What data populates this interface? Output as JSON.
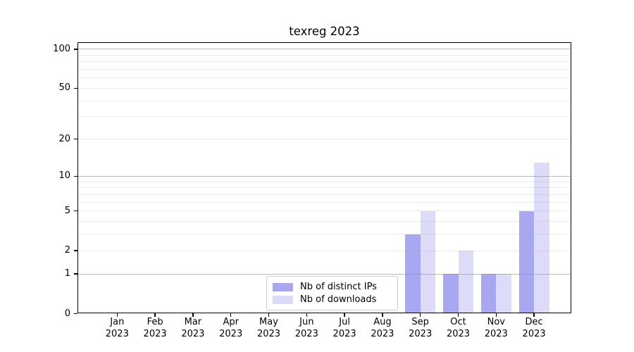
{
  "chart_data": {
    "type": "bar",
    "title": "texreg 2023",
    "categories": [
      "Jan",
      "Feb",
      "Mar",
      "Apr",
      "May",
      "Jun",
      "Jul",
      "Aug",
      "Sep",
      "Oct",
      "Nov",
      "Dec"
    ],
    "year": "2023",
    "series": [
      {
        "name": "Nb of distinct IPs",
        "color": "#a8a8f2",
        "values": [
          0,
          0,
          0,
          0,
          0,
          0,
          0,
          0,
          3,
          1,
          1,
          5
        ]
      },
      {
        "name": "Nb of downloads",
        "color": "#dcdcf8",
        "values": [
          0,
          0,
          0,
          0,
          0,
          0,
          0,
          0,
          5,
          2,
          1,
          13
        ]
      }
    ],
    "yscale": "log1p",
    "yticks": [
      0,
      1,
      2,
      5,
      10,
      20,
      50,
      100
    ],
    "ylim": [
      0,
      113
    ],
    "major_gridlines": [
      1,
      10,
      100
    ],
    "minor_gridlines": [
      2,
      3,
      4,
      5,
      6,
      7,
      8,
      9,
      20,
      30,
      40,
      50,
      60,
      70,
      80,
      90
    ],
    "grid": true,
    "legend_position": "bottom-center"
  },
  "colors": {
    "major_grid": "#b0b0b0",
    "minor_grid": "#e8e8e8",
    "axis": "#000000",
    "background": "#ffffff"
  }
}
